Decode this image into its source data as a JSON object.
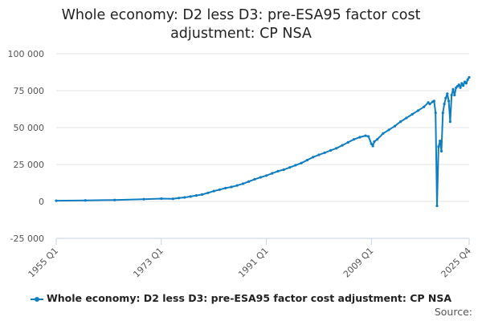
{
  "chart_data": {
    "type": "line",
    "title_lines": [
      "Whole economy: D2 less D3: pre-ESA95 factor cost",
      "adjustment: CP NSA"
    ],
    "xlabel": "",
    "ylabel": "",
    "ylim": [
      -25000,
      100000
    ],
    "yticks": [
      -25000,
      0,
      25000,
      50000,
      75000,
      100000
    ],
    "ytick_labels": [
      "-25 000",
      "0",
      "25 000",
      "50 000",
      "75 000",
      "100 000"
    ],
    "xlim": [
      1955.0,
      2025.75
    ],
    "xticks": [
      1955.0,
      1973.0,
      1991.0,
      2009.0,
      2025.75
    ],
    "xtick_labels": [
      "1955 Q1",
      "1973 Q1",
      "1991 Q1",
      "2009 Q1",
      "2025 Q4"
    ],
    "grid": "horizontal",
    "series": [
      {
        "name": "Whole economy: D2 less D3: pre-ESA95 factor cost adjustment: CP NSA",
        "color": "#0f7ec0",
        "points": [
          [
            1955.0,
            500
          ],
          [
            1960.0,
            700
          ],
          [
            1965.0,
            1000
          ],
          [
            1970.0,
            1500
          ],
          [
            1973.0,
            1900
          ],
          [
            1975.0,
            1800
          ],
          [
            1976.0,
            2300
          ],
          [
            1977.0,
            2700
          ],
          [
            1978.0,
            3300
          ],
          [
            1979.0,
            4000
          ],
          [
            1980.0,
            4700
          ],
          [
            1981.0,
            5800
          ],
          [
            1982.0,
            7000
          ],
          [
            1983.0,
            8000
          ],
          [
            1984.0,
            9000
          ],
          [
            1985.0,
            9800
          ],
          [
            1986.0,
            10800
          ],
          [
            1987.0,
            12000
          ],
          [
            1988.0,
            13500
          ],
          [
            1989.0,
            15000
          ],
          [
            1990.0,
            16300
          ],
          [
            1991.0,
            17500
          ],
          [
            1992.0,
            19000
          ],
          [
            1993.0,
            20500
          ],
          [
            1994.0,
            21500
          ],
          [
            1995.0,
            23000
          ],
          [
            1996.0,
            24500
          ],
          [
            1997.0,
            26000
          ],
          [
            1998.0,
            28000
          ],
          [
            1999.0,
            30000
          ],
          [
            2000.0,
            31500
          ],
          [
            2001.0,
            33000
          ],
          [
            2002.0,
            34500
          ],
          [
            2003.0,
            36000
          ],
          [
            2004.0,
            38000
          ],
          [
            2005.0,
            40000
          ],
          [
            2006.0,
            42000
          ],
          [
            2007.0,
            43500
          ],
          [
            2008.0,
            44500
          ],
          [
            2008.5,
            44000
          ],
          [
            2009.0,
            39000
          ],
          [
            2009.25,
            37500
          ],
          [
            2009.5,
            40500
          ],
          [
            2010.0,
            42000
          ],
          [
            2011.0,
            46000
          ],
          [
            2012.0,
            48500
          ],
          [
            2013.0,
            51000
          ],
          [
            2014.0,
            54000
          ],
          [
            2015.0,
            56500
          ],
          [
            2016.0,
            59000
          ],
          [
            2017.0,
            61500
          ],
          [
            2018.0,
            64000
          ],
          [
            2018.75,
            67000
          ],
          [
            2019.0,
            66000
          ],
          [
            2019.5,
            67500
          ],
          [
            2019.75,
            68000
          ],
          [
            2020.0,
            60000
          ],
          [
            2020.25,
            -3000
          ],
          [
            2020.5,
            37000
          ],
          [
            2020.75,
            41000
          ],
          [
            2021.0,
            34000
          ],
          [
            2021.25,
            60000
          ],
          [
            2021.5,
            66000
          ],
          [
            2021.75,
            70000
          ],
          [
            2022.0,
            73000
          ],
          [
            2022.25,
            68000
          ],
          [
            2022.5,
            54000
          ],
          [
            2022.75,
            72000
          ],
          [
            2023.0,
            76000
          ],
          [
            2023.25,
            72000
          ],
          [
            2023.5,
            77000
          ],
          [
            2023.75,
            78000
          ],
          [
            2024.0,
            79000
          ],
          [
            2024.25,
            77000
          ],
          [
            2024.5,
            80000
          ],
          [
            2024.75,
            78500
          ],
          [
            2025.0,
            81000
          ],
          [
            2025.25,
            80000
          ],
          [
            2025.5,
            82500
          ],
          [
            2025.75,
            84000
          ]
        ]
      }
    ],
    "legend_label": "Whole economy: D2 less D3: pre-ESA95 factor cost adjustment: CP NSA",
    "source_label": "Source:"
  }
}
